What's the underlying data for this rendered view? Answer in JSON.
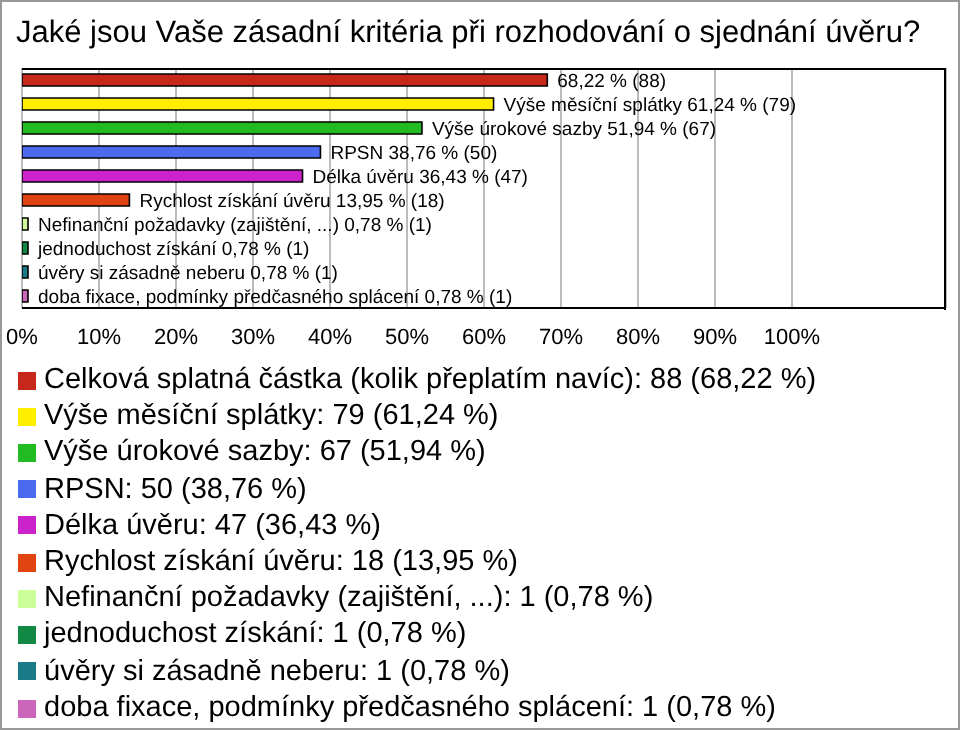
{
  "chart_data": {
    "type": "bar",
    "orientation": "horizontal",
    "stacked": true,
    "title": "Jaké jsou Vaše zásadní kritéria při rozhodování o sjednání úvěru?",
    "categories": [
      null,
      null,
      null,
      null,
      null,
      null,
      null,
      null,
      null,
      null
    ],
    "series": [
      {
        "name": "Celková splatná částka (kolik přeplatím navíc): 88 (68,22 %)",
        "color": "#c8281c",
        "values": [
          68.22,
          null,
          null,
          null,
          null,
          null,
          null,
          null,
          null,
          null
        ],
        "value_labels": [
          "68,22 % (88)",
          null,
          null,
          null,
          null,
          null,
          null,
          null,
          null,
          null
        ]
      },
      {
        "name": "Výše měsíční splátky: 79 (61,24 %)",
        "color": "#ffee00",
        "values": [
          null,
          61.24,
          null,
          null,
          null,
          null,
          null,
          null,
          null,
          null
        ],
        "value_labels": [
          null,
          "Výše měsíční splátky 61,24 % (79)",
          null,
          null,
          null,
          null,
          null,
          null,
          null,
          null
        ]
      },
      {
        "name": "Výše úrokové sazby: 67 (51,94 %)",
        "color": "#22bb22",
        "values": [
          null,
          null,
          51.94,
          null,
          null,
          null,
          null,
          null,
          null,
          null
        ],
        "value_labels": [
          null,
          null,
          "Výše úrokové sazby 51,94 % (67)",
          null,
          null,
          null,
          null,
          null,
          null,
          null
        ]
      },
      {
        "name": "RPSN: 50 (38,76 %)",
        "color": "#4a6af0",
        "values": [
          null,
          null,
          null,
          38.76,
          null,
          null,
          null,
          null,
          null,
          null
        ],
        "value_labels": [
          null,
          null,
          null,
          "RPSN 38,76 % (50)",
          null,
          null,
          null,
          null,
          null,
          null
        ]
      },
      {
        "name": "Délka úvěru: 47 (36,43 %)",
        "color": "#cc22cc",
        "values": [
          null,
          null,
          null,
          null,
          36.43,
          null,
          null,
          null,
          null,
          null
        ],
        "value_labels": [
          null,
          null,
          null,
          null,
          "Délka úvěru 36,43 % (47)",
          null,
          null,
          null,
          null,
          null
        ]
      },
      {
        "name": "Rychlost získání úvěru: 18 (13,95 %)",
        "color": "#e04410",
        "values": [
          null,
          null,
          null,
          null,
          null,
          13.95,
          null,
          null,
          null,
          null
        ],
        "value_labels": [
          null,
          null,
          null,
          null,
          null,
          "Rychlost získání úvěru 13,95 % (18)",
          null,
          null,
          null,
          null
        ]
      },
      {
        "name": "Nefinanční požadavky (zajištění, ...): 1 (0,78 %)",
        "color": "#ccff99",
        "values": [
          null,
          null,
          null,
          null,
          null,
          null,
          0.78,
          null,
          null,
          null
        ],
        "value_labels": [
          null,
          null,
          null,
          null,
          null,
          null,
          "Nefinanční požadavky (zajištění, ...) 0,78 % (1)",
          null,
          null,
          null
        ]
      },
      {
        "name": "jednoduchost získání: 1 (0,78 %)",
        "color": "#118844",
        "values": [
          null,
          null,
          null,
          null,
          null,
          null,
          null,
          0.78,
          null,
          null
        ],
        "value_labels": [
          null,
          null,
          null,
          null,
          null,
          null,
          null,
          "jednoduchost získání 0,78 % (1)",
          null,
          null
        ]
      },
      {
        "name": "úvěry si zásadně neberu: 1 (0,78 %)",
        "color": "#1a7a88",
        "values": [
          null,
          null,
          null,
          null,
          null,
          null,
          null,
          null,
          0.78,
          null
        ],
        "value_labels": [
          null,
          null,
          null,
          null,
          null,
          null,
          null,
          null,
          "úvěry si zásadně neberu 0,78 % (1)",
          null
        ]
      },
      {
        "name": "doba fixace, podmínky předčasného splácení: 1 (0,78 %)",
        "color": "#cc66bb",
        "values": [
          null,
          null,
          null,
          null,
          null,
          null,
          null,
          null,
          null,
          0.78
        ],
        "value_labels": [
          null,
          null,
          null,
          null,
          null,
          null,
          null,
          null,
          null,
          "doba fixace, podmínky předčasného splácení 0,78 % (1)"
        ]
      }
    ],
    "xlim": [
      0,
      120
    ],
    "xticks": [
      {
        "value": 0,
        "label": "0%"
      },
      {
        "value": 10,
        "label": "10%"
      },
      {
        "value": 20,
        "label": "20%"
      },
      {
        "value": 30,
        "label": "30%"
      },
      {
        "value": 40,
        "label": "40%"
      },
      {
        "value": 50,
        "label": "50%"
      },
      {
        "value": 60,
        "label": "60%"
      },
      {
        "value": 70,
        "label": "70%"
      },
      {
        "value": 80,
        "label": "80%"
      },
      {
        "value": 90,
        "label": "90%"
      },
      {
        "value": 100,
        "label": "100%"
      }
    ],
    "grid": "x",
    "legend": "bottom",
    "tick_labels": "x"
  }
}
